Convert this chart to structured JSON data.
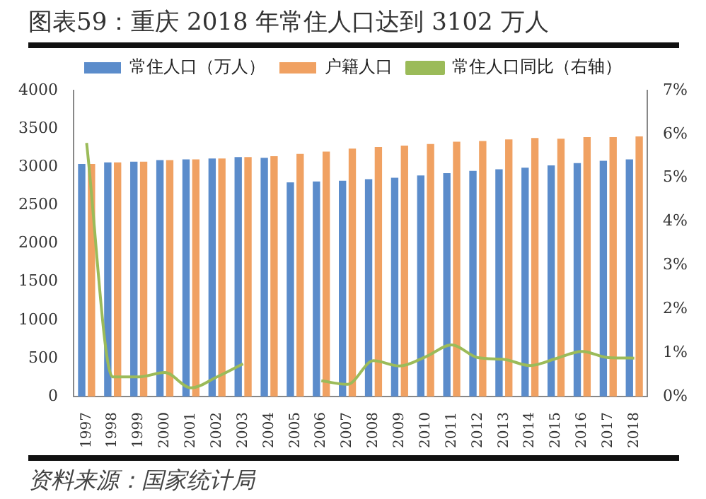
{
  "chart_data": {
    "type": "bar",
    "title": "图表59：重庆 2018 年常住人口达到 3102 万人",
    "categories": [
      "1997",
      "1998",
      "1999",
      "2000",
      "2001",
      "2002",
      "2003",
      "2004",
      "2005",
      "2006",
      "2007",
      "2008",
      "2009",
      "2010",
      "2011",
      "2012",
      "2013",
      "2014",
      "2015",
      "2016",
      "2017",
      "2018"
    ],
    "series": [
      {
        "name": "常住人口（万人）",
        "color": "#5b8ccb",
        "values": [
          3040,
          3060,
          3070,
          3090,
          3100,
          3110,
          3130,
          3120,
          2800,
          2810,
          2820,
          2840,
          2860,
          2890,
          2920,
          2950,
          2970,
          2990,
          3020,
          3050,
          3080,
          3100
        ]
      },
      {
        "name": "户籍人口",
        "color": "#f0a162",
        "values": [
          3040,
          3060,
          3070,
          3090,
          3100,
          3110,
          3130,
          3140,
          3170,
          3200,
          3240,
          3260,
          3280,
          3300,
          3330,
          3340,
          3360,
          3380,
          3370,
          3390,
          3390,
          3400
        ]
      },
      {
        "name": "常住人口同比（右轴）",
        "type": "line",
        "axis": "y2",
        "color": "#9bbb59",
        "values": [
          5.8,
          0.45,
          0.45,
          0.55,
          0.2,
          0.45,
          0.75,
          null,
          null,
          0.36,
          0.28,
          0.82,
          0.7,
          0.91,
          1.18,
          0.89,
          0.85,
          0.71,
          0.87,
          1.03,
          0.89,
          0.88
        ]
      }
    ],
    "ylim": [
      0,
      4000
    ],
    "yticks": [
      0,
      500,
      1000,
      1500,
      2000,
      2500,
      3000,
      3500,
      4000
    ],
    "y2lim": [
      0,
      7
    ],
    "y2ticks": [
      {
        "value": 0,
        "label": "0%"
      },
      {
        "value": 1,
        "label": "1%"
      },
      {
        "value": 2,
        "label": "2%"
      },
      {
        "value": 3,
        "label": "3%"
      },
      {
        "value": 4,
        "label": "4%"
      },
      {
        "value": 5,
        "label": "5%"
      },
      {
        "value": 6,
        "label": "6%"
      },
      {
        "value": 7,
        "label": "7%"
      }
    ],
    "legend": "top",
    "grid": false,
    "marker": "none",
    "annotations": [
      "资料来源：国家统计局"
    ]
  }
}
